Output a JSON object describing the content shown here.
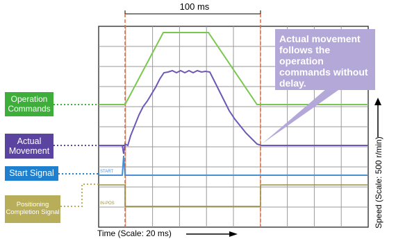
{
  "header": {
    "interval_label": "100 ms"
  },
  "callout": {
    "text": "Actual movement follows the operation commands without delay."
  },
  "signals": {
    "operation_commands": {
      "label": "Operation\nCommands",
      "color": "#3eae3a"
    },
    "actual_movement": {
      "label": "Actual\nMovement",
      "color": "#5a44a0"
    },
    "start_signal": {
      "label": "Start Signal",
      "color": "#1f80cf"
    },
    "positioning_completion": {
      "label": "Positioning\nCompletion Signal",
      "color": "#b8ad58"
    }
  },
  "trace_tags": {
    "start": "START",
    "in_pos": "IN-POS"
  },
  "axes": {
    "time_label": "Time (Scale: 20 ms)",
    "speed_label": "Speed (Scale: 500 r/min)"
  },
  "colors": {
    "marker_lines": "#e0683a",
    "callout_bg": "#b4a8d8",
    "grid": "#9a9a9a"
  }
}
